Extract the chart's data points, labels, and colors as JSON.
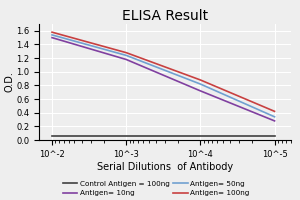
{
  "title": "ELISA Result",
  "ylabel": "O.D.",
  "xlabel": "Serial Dilutions  of Antibody",
  "x_values": [
    0.01,
    0.001,
    0.0001,
    1e-05
  ],
  "series": [
    {
      "label": "Control Antigen = 100ng",
      "color": "#404040",
      "linewidth": 1.2,
      "y_values": [
        0.06,
        0.06,
        0.06,
        0.06
      ]
    },
    {
      "label": "Antigen= 10ng",
      "color": "#8040a0",
      "linewidth": 1.2,
      "y_values": [
        1.5,
        1.18,
        0.72,
        0.28
      ]
    },
    {
      "label": "Antigen= 50ng",
      "color": "#70a0d0",
      "linewidth": 1.2,
      "y_values": [
        1.54,
        1.24,
        0.82,
        0.34
      ]
    },
    {
      "label": "Antigen= 100ng",
      "color": "#c84040",
      "linewidth": 1.2,
      "y_values": [
        1.58,
        1.28,
        0.88,
        0.42
      ]
    }
  ],
  "ylim": [
    0,
    1.7
  ],
  "yticks": [
    0,
    0.2,
    0.4,
    0.6,
    0.8,
    1.0,
    1.2,
    1.4,
    1.6
  ],
  "xlim_left": 0.015,
  "xlim_right": 6e-06,
  "xticks": [
    0.01,
    0.001,
    0.0001,
    1e-05
  ],
  "xtick_labels": [
    "10^-2",
    "10^-3",
    "10^-4",
    "10^-5"
  ],
  "background_color": "#eeeeee",
  "grid_color": "#ffffff",
  "title_fontsize": 10,
  "ylabel_fontsize": 7,
  "xlabel_fontsize": 7,
  "tick_fontsize": 6,
  "legend_fontsize": 5.2
}
